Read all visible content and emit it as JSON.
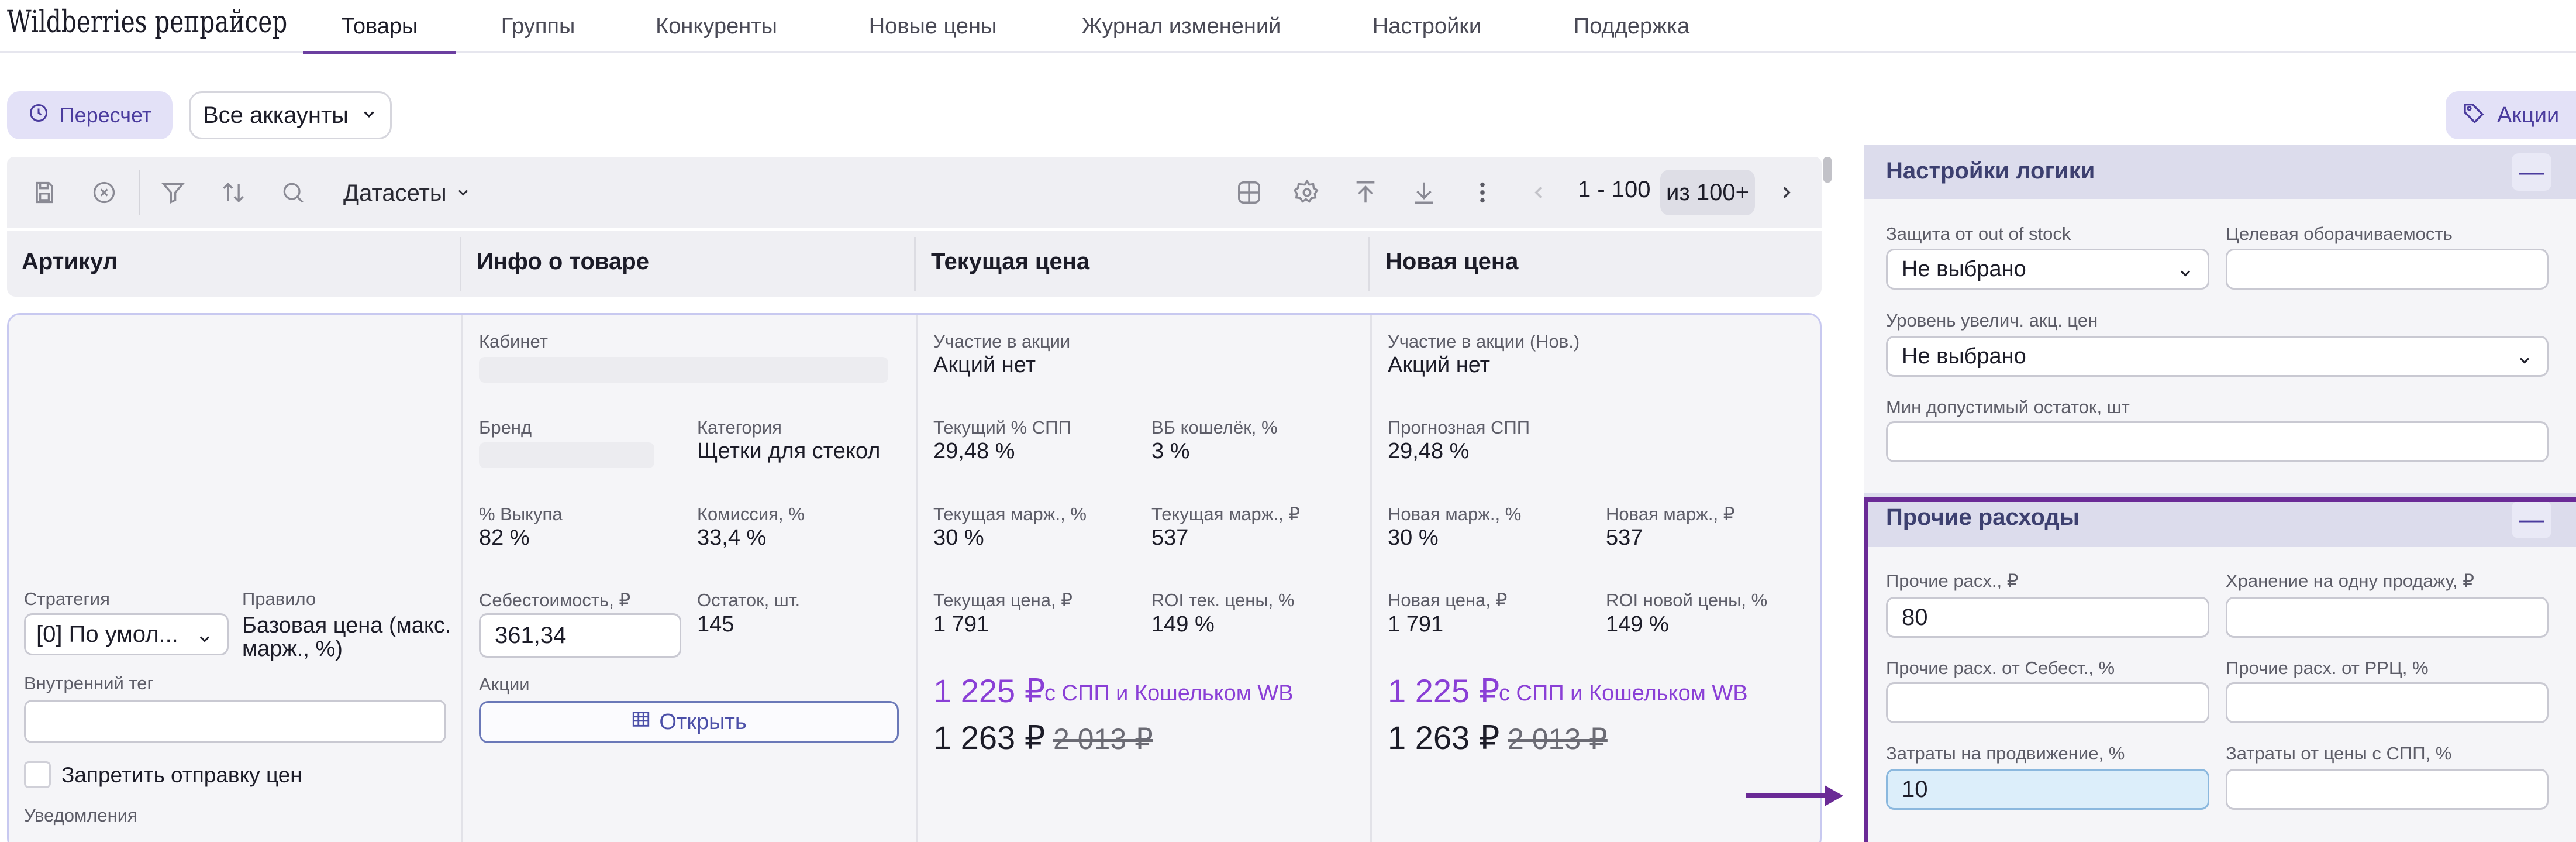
{
  "app": {
    "brand": "Wildberries репрайсер"
  },
  "nav": {
    "tabs": [
      {
        "label": "Товары"
      },
      {
        "label": "Группы"
      },
      {
        "label": "Конкуренты"
      },
      {
        "label": "Новые цены"
      },
      {
        "label": "Журнал изменений"
      },
      {
        "label": "Настройки"
      },
      {
        "label": "Поддержка"
      }
    ],
    "active_tab": "Товары"
  },
  "actions": {
    "recalc_label": "Пересчет",
    "accounts_label": "Все аккаунты",
    "promo_label": "Акции"
  },
  "toolbar": {
    "datasets_label": "Датасеты",
    "pager_range": "1 - 100",
    "pager_total": "из 100+",
    "icons": [
      "save-icon",
      "clear-icon",
      "filter-icon",
      "sort-icon",
      "search-icon",
      "grid-icon",
      "gear-icon",
      "upload-icon",
      "download-icon",
      "more-icon",
      "chevron-left-icon",
      "chevron-right-icon"
    ]
  },
  "table": {
    "columns": [
      "Артикул",
      "Инфо о товаре",
      "Текущая цена",
      "Новая цена"
    ]
  },
  "product": {
    "article": {
      "strategy_label": "Стратегия",
      "strategy_value": "[0] По умол...",
      "rule_label": "Правило",
      "rule_value_line1": "Базовая цена (макс.",
      "rule_value_line2": "марж., %)",
      "tag_label": "Внутренний тег",
      "tag_value": "",
      "block_prices_label": "Запретить отправку цен",
      "notifications_label": "Уведомления"
    },
    "info": {
      "cabinet_label": "Кабинет",
      "brand_label": "Бренд",
      "category_label": "Категория",
      "category_value": "Щетки для стекол",
      "buyout_label": "% Выкупа",
      "buyout_value": "82 %",
      "commission_label": "Комиссия, %",
      "commission_value": "33,4 %",
      "cost_label": "Себестоимость, ₽",
      "cost_value": "361,34",
      "stock_label": "Остаток, шт.",
      "stock_value": "145",
      "promos_label": "Акции",
      "open_label": "Открыть"
    },
    "current": {
      "promo_part_label": "Участие в акции",
      "promo_part_value": "Акций нет",
      "spp_label": "Текущий % СПП",
      "spp_value": "29,48 %",
      "wallet_label": "ВБ кошелёк, %",
      "wallet_value": "3 %",
      "margin_pct_label": "Текущая марж., %",
      "margin_pct_value": "30 %",
      "margin_rub_label": "Текущая марж., ₽",
      "margin_rub_value": "537",
      "price_label": "Текущая цена, ₽",
      "price_value": "1 791",
      "roi_label": "ROI тек. цены, %",
      "roi_value": "149 %",
      "price_spp": "1 225 ₽",
      "price_spp_note": "с СПП и Кошельком WB",
      "price_final": "1 263 ₽",
      "price_old": "2 013 ₽"
    },
    "new": {
      "promo_part_label": "Участие в акции (Нов.)",
      "promo_part_value": "Акций нет",
      "spp_label": "Прогнозная СПП",
      "spp_value": "29,48 %",
      "margin_pct_label": "Новая марж., %",
      "margin_pct_value": "30 %",
      "margin_rub_label": "Новая марж., ₽",
      "margin_rub_value": "537",
      "price_label": "Новая цена, ₽",
      "price_value": "1 791",
      "roi_label": "ROI новой цены, %",
      "roi_value": "149 %",
      "price_spp": "1 225 ₽",
      "price_spp_note": "с СПП и Кошельком WB",
      "price_final": "1 263 ₽",
      "price_old": "2 013 ₽"
    }
  },
  "panel": {
    "logic": {
      "title": "Настройки логики",
      "oos_label": "Защита от out of stock",
      "oos_value": "Не выбрано",
      "turnover_label": "Целевая оборачиваемость",
      "turnover_value": "",
      "raise_label": "Уровень увелич. акц. цен",
      "raise_value": "Не выбрано",
      "min_stock_label": "Мин допустимый остаток, шт",
      "min_stock_value": ""
    },
    "other": {
      "title": "Прочие расходы",
      "other_exp_label": "Прочие расх., ₽",
      "other_exp_value": "80",
      "storage_label": "Хранение на одну продажу, ₽",
      "storage_value": "",
      "pct_cost_label": "Прочие расх. от Себест., %",
      "pct_cost_value": "",
      "pct_rrc_label": "Прочие расх. от РРЦ, %",
      "pct_rrc_value": "",
      "promo_cost_label": "Затраты на продвижение, %",
      "promo_cost_value": "10",
      "spp_cost_label": "Затраты от цены с СПП, %",
      "spp_cost_value": ""
    },
    "collapse_symbol": "—"
  },
  "colors": {
    "accent": "#6b3fa0",
    "highlight": "#6a2a96",
    "purple_price": "#8a3fd6",
    "panel_header": "#dcdcec"
  }
}
